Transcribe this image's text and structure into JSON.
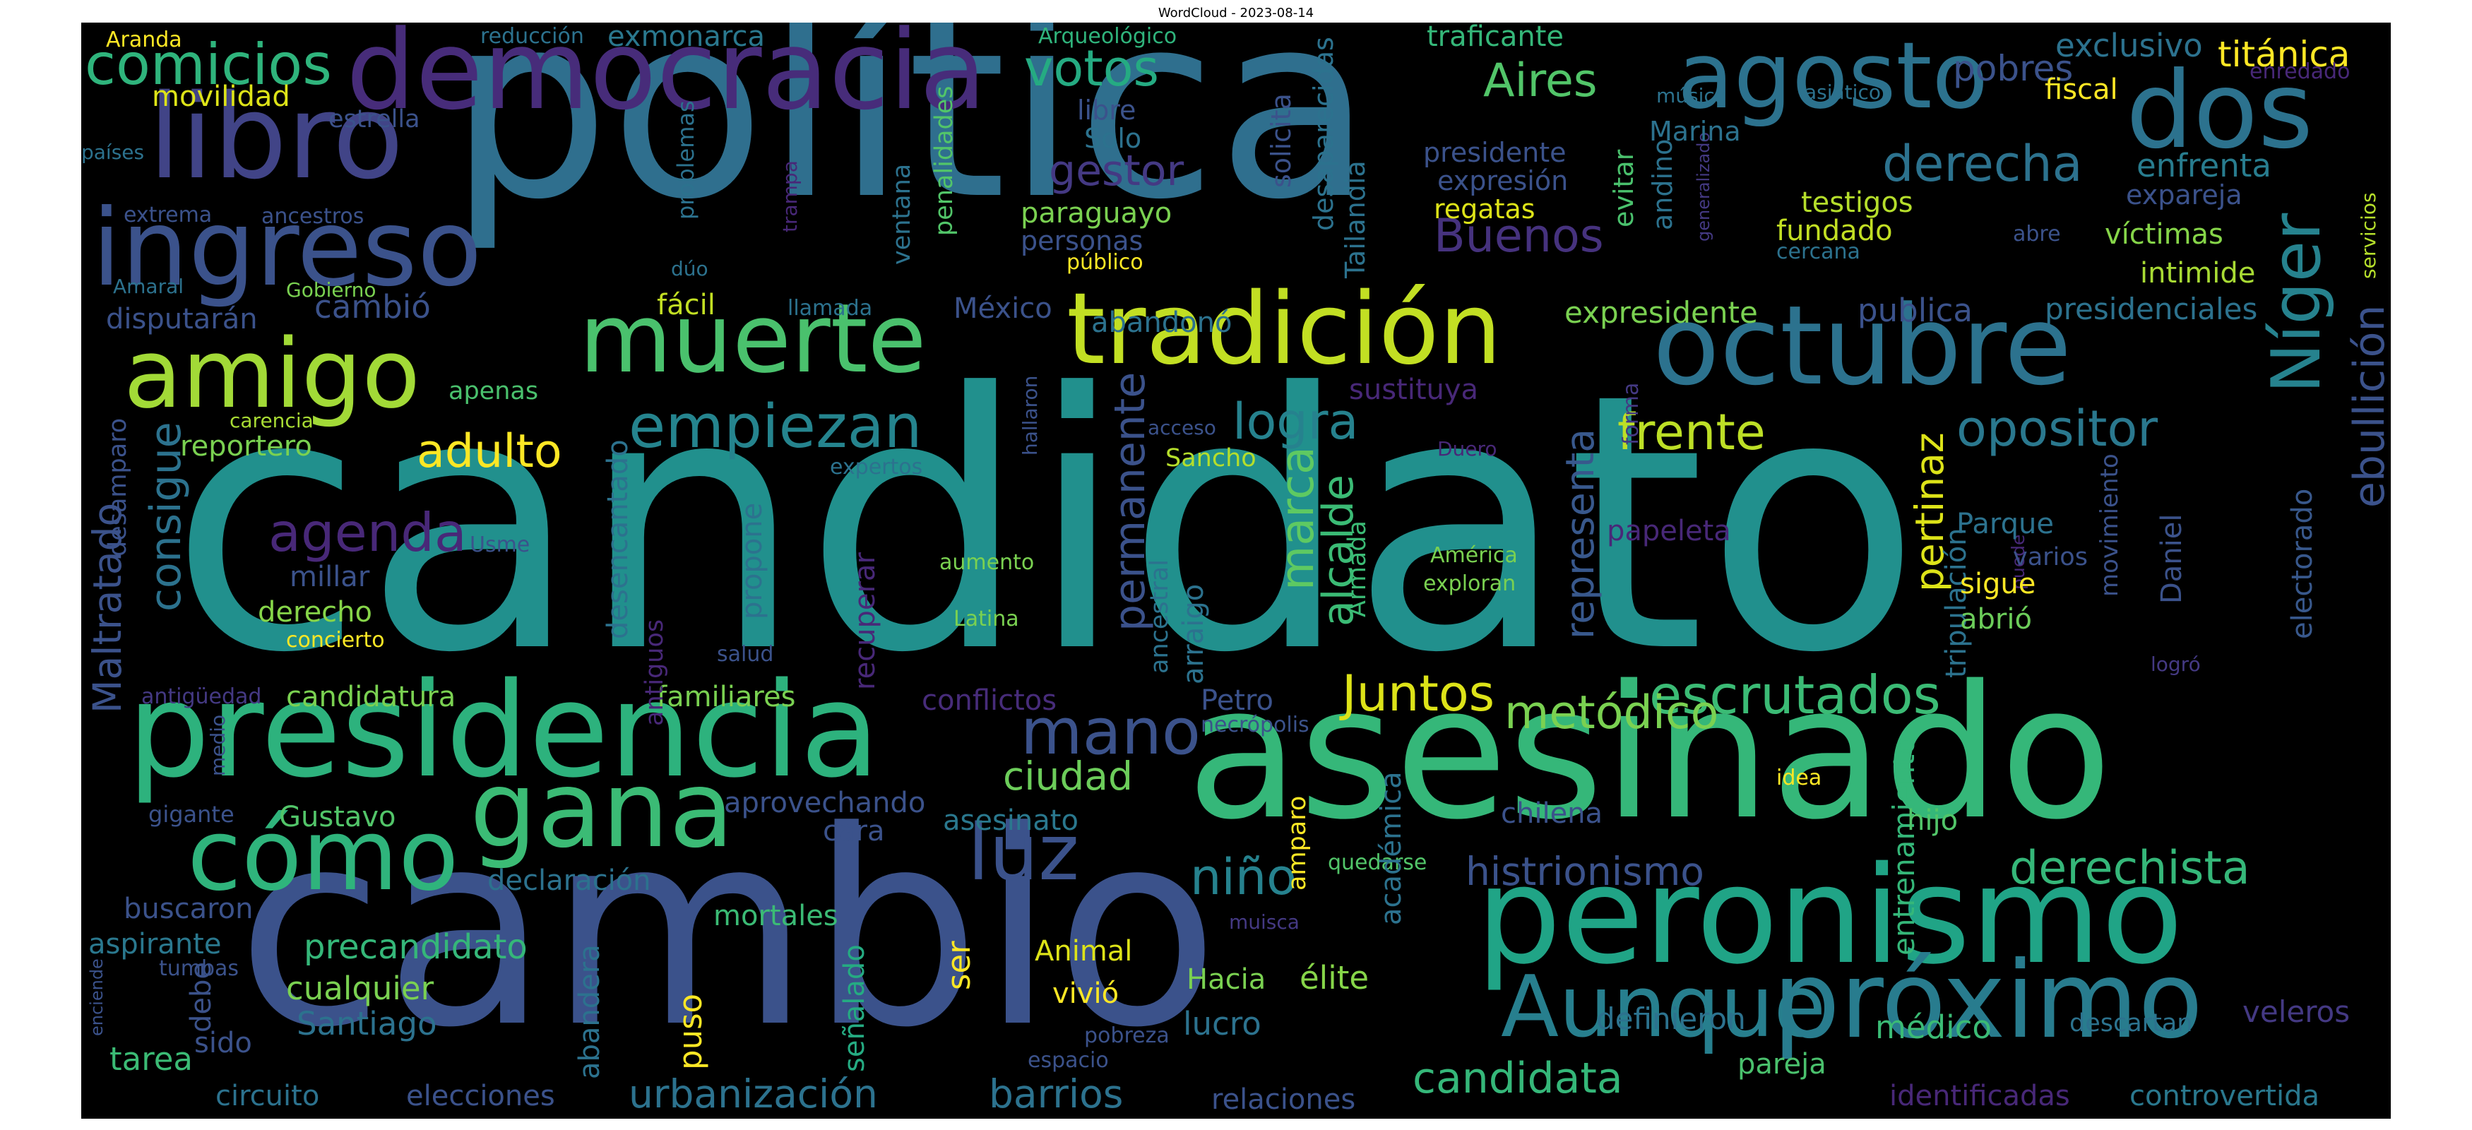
{
  "title": "WordCloud - 2023-08-14",
  "words": [
    {
      "text": "política",
      "color": "#2f6f8e"
    },
    {
      "text": "candidato",
      "color": "#21908d"
    },
    {
      "text": "cambio",
      "color": "#3b528b"
    },
    {
      "text": "asesinado",
      "color": "#35b779"
    },
    {
      "text": "peronismo",
      "color": "#20a486"
    },
    {
      "text": "presidencia",
      "color": "#2db27d"
    },
    {
      "text": "democracia",
      "color": "#472c7a"
    },
    {
      "text": "ingreso",
      "color": "#3b528b"
    },
    {
      "text": "libro",
      "color": "#414487"
    },
    {
      "text": "agosto",
      "color": "#2c728e"
    },
    {
      "text": "dos",
      "color": "#2c728e"
    },
    {
      "text": "octubre",
      "color": "#2c728e"
    },
    {
      "text": "muerte",
      "color": "#4ac16d"
    },
    {
      "text": "tradición",
      "color": "#c2df23"
    },
    {
      "text": "amigo",
      "color": "#a2da37"
    },
    {
      "text": "gana",
      "color": "#3bbb75"
    },
    {
      "text": "cómo",
      "color": "#2fb47c"
    },
    {
      "text": "Aunque",
      "color": "#277f8e"
    },
    {
      "text": "próximo",
      "color": "#287c8e"
    },
    {
      "text": "Níger",
      "color": "#26828e"
    },
    {
      "text": "comicios",
      "color": "#2fb47c"
    },
    {
      "text": "empiezan",
      "color": "#25848e"
    },
    {
      "text": "luz",
      "color": "#3b528b"
    },
    {
      "text": "mano",
      "color": "#3b528b"
    },
    {
      "text": "Juntos",
      "color": "#dde318"
    },
    {
      "text": "escrutados",
      "color": "#3bbb75"
    },
    {
      "text": "metódico",
      "color": "#7ad151"
    },
    {
      "text": "derechista",
      "color": "#35b779"
    },
    {
      "text": "histrionismo",
      "color": "#3b528b"
    },
    {
      "text": "candidata",
      "color": "#35b779"
    },
    {
      "text": "urbanización",
      "color": "#2c728e"
    },
    {
      "text": "barrios",
      "color": "#2c728e"
    },
    {
      "text": "agenda",
      "color": "#482878"
    },
    {
      "text": "adulto",
      "color": "#fde725"
    },
    {
      "text": "logra",
      "color": "#26828e"
    },
    {
      "text": "frente",
      "color": "#bddf26"
    },
    {
      "text": "opositor",
      "color": "#2a788e"
    },
    {
      "text": "derecha",
      "color": "#2c728e"
    },
    {
      "text": "votos",
      "color": "#25ab82"
    },
    {
      "text": "gestor",
      "color": "#443983"
    },
    {
      "text": "Aires",
      "color": "#52c569"
    },
    {
      "text": "Buenos",
      "color": "#46327e"
    },
    {
      "text": "pobres",
      "color": "#3b528b"
    },
    {
      "text": "titánica",
      "color": "#fde725"
    },
    {
      "text": "exclusivo",
      "color": "#2c728e"
    },
    {
      "text": "enfrenta",
      "color": "#287c8e"
    },
    {
      "text": "expareja",
      "color": "#3b528b"
    },
    {
      "text": "víctimas",
      "color": "#86d549"
    },
    {
      "text": "intimide",
      "color": "#a8db34"
    },
    {
      "text": "presidenciales",
      "color": "#2c728e"
    },
    {
      "text": "expresidente",
      "color": "#7ad151"
    },
    {
      "text": "publica",
      "color": "#3b528b"
    },
    {
      "text": "ebullición",
      "color": "#3b528b"
    },
    {
      "text": "electorado",
      "color": "#38588c"
    },
    {
      "text": "movimiento",
      "color": "#3b528b"
    },
    {
      "text": "Daniel",
      "color": "#3b528b"
    },
    {
      "text": "consigue",
      "color": "#2c728e"
    },
    {
      "text": "Maltratado",
      "color": "#3b528b"
    },
    {
      "text": "niño",
      "color": "#26828e"
    },
    {
      "text": "ciudad",
      "color": "#6ccd5a"
    },
    {
      "text": "marca",
      "color": "#5ec962"
    },
    {
      "text": "alcalde",
      "color": "#3bbb75"
    },
    {
      "text": "permanente",
      "color": "#3b528b"
    },
    {
      "text": "representa",
      "color": "#38588c"
    },
    {
      "text": "pertinaz",
      "color": "#dde318"
    },
    {
      "text": "entrenamiento",
      "color": "#35b779"
    },
    {
      "text": "precandidato",
      "color": "#35b779"
    },
    {
      "text": "cualquier",
      "color": "#7ad151"
    },
    {
      "text": "Santiago",
      "color": "#2c728e"
    },
    {
      "text": "tarea",
      "color": "#3bbb75"
    },
    {
      "text": "circuito",
      "color": "#2c728e"
    },
    {
      "text": "elecciones",
      "color": "#3b528b"
    },
    {
      "text": "relaciones",
      "color": "#3b528b"
    },
    {
      "text": "pareja",
      "color": "#4ac16d"
    },
    {
      "text": "identificadas",
      "color": "#482878"
    },
    {
      "text": "controvertida",
      "color": "#2a788e"
    },
    {
      "text": "definieron",
      "color": "#2c728e"
    },
    {
      "text": "médico",
      "color": "#3bbb75"
    },
    {
      "text": "descartan",
      "color": "#2c728e"
    },
    {
      "text": "veleros",
      "color": "#443983"
    },
    {
      "text": "lucro",
      "color": "#2c728e"
    },
    {
      "text": "élite",
      "color": "#86d549"
    },
    {
      "text": "Hacia",
      "color": "#7ad151"
    },
    {
      "text": "Animal",
      "color": "#dde318"
    },
    {
      "text": "vivió",
      "color": "#fde725"
    },
    {
      "text": "puso",
      "color": "#fde725"
    },
    {
      "text": "ser",
      "color": "#fde725"
    },
    {
      "text": "señalado",
      "color": "#25ab82"
    },
    {
      "text": "abandera",
      "color": "#2c728e"
    },
    {
      "text": "declaración",
      "color": "#2c728e"
    },
    {
      "text": "mortales",
      "color": "#3bbb75"
    },
    {
      "text": "aprovechando",
      "color": "#3b528b"
    },
    {
      "text": "asesinato",
      "color": "#2a788e"
    },
    {
      "text": "cara",
      "color": "#3b528b"
    },
    {
      "text": "Gustavo",
      "color": "#52c569"
    },
    {
      "text": "gigante",
      "color": "#3b528b"
    },
    {
      "text": "buscaron",
      "color": "#3b528b"
    },
    {
      "text": "aspirante",
      "color": "#2a788e"
    },
    {
      "text": "tumbas",
      "color": "#3b528b"
    },
    {
      "text": "debe",
      "color": "#3b528b"
    },
    {
      "text": "sido",
      "color": "#3b528b"
    },
    {
      "text": "enciende",
      "color": "#3b528b"
    },
    {
      "text": "candidatura",
      "color": "#7ad151"
    },
    {
      "text": "familiares",
      "color": "#7ad151"
    },
    {
      "text": "conflictos",
      "color": "#472c7a"
    },
    {
      "text": "Petro",
      "color": "#3b528b"
    },
    {
      "text": "necrópolis",
      "color": "#3b528b"
    },
    {
      "text": "chilena",
      "color": "#3b528b"
    },
    {
      "text": "hijo",
      "color": "#52c569"
    },
    {
      "text": "quedarse",
      "color": "#52c569"
    },
    {
      "text": "académica",
      "color": "#2c728e"
    },
    {
      "text": "amparo",
      "color": "#fde725"
    },
    {
      "text": "idea",
      "color": "#fde725"
    },
    {
      "text": "muisca",
      "color": "#443983"
    },
    {
      "text": "pobreza",
      "color": "#3b528b"
    },
    {
      "text": "espacio",
      "color": "#3b528b"
    },
    {
      "text": "medio",
      "color": "#3b528b"
    },
    {
      "text": "antigüedad",
      "color": "#443983"
    },
    {
      "text": "derecho",
      "color": "#86d549"
    },
    {
      "text": "concierto",
      "color": "#fde725"
    },
    {
      "text": "millar",
      "color": "#3b528b"
    },
    {
      "text": "desencantado",
      "color": "#2c728e"
    },
    {
      "text": "antiguos",
      "color": "#482878"
    },
    {
      "text": "propone",
      "color": "#2c728e"
    },
    {
      "text": "salud",
      "color": "#3b528b"
    },
    {
      "text": "recuperar",
      "color": "#482878"
    },
    {
      "text": "ancestral",
      "color": "#2c728e"
    },
    {
      "text": "arraigo",
      "color": "#2c728e"
    },
    {
      "text": "Armada",
      "color": "#3bbb75"
    },
    {
      "text": "aumento",
      "color": "#7ad151"
    },
    {
      "text": "Latina",
      "color": "#7ad151"
    },
    {
      "text": "América",
      "color": "#7ad151"
    },
    {
      "text": "exploran",
      "color": "#7ad151"
    },
    {
      "text": "Sancho",
      "color": "#b5de2b"
    },
    {
      "text": "acceso",
      "color": "#3b528b"
    },
    {
      "text": "Duero",
      "color": "#482878"
    },
    {
      "text": "hallaron",
      "color": "#3b528b"
    },
    {
      "text": "expertos",
      "color": "#2c728e"
    },
    {
      "text": "apenas",
      "color": "#4ac16d"
    },
    {
      "text": "reportero",
      "color": "#7ad151"
    },
    {
      "text": "carencia",
      "color": "#a8db34"
    },
    {
      "text": "desamparo",
      "color": "#3b528b"
    },
    {
      "text": "Usme",
      "color": "#3b528b"
    },
    {
      "text": "papeleta",
      "color": "#482878"
    },
    {
      "text": "forma",
      "color": "#443983"
    },
    {
      "text": "tripulación",
      "color": "#2c728e"
    },
    {
      "text": "puede",
      "color": "#482878"
    },
    {
      "text": "Parque",
      "color": "#2c728e"
    },
    {
      "text": "varios",
      "color": "#3b528b"
    },
    {
      "text": "sigue",
      "color": "#fde725"
    },
    {
      "text": "abrió",
      "color": "#6ccd5a"
    },
    {
      "text": "logró",
      "color": "#443983"
    },
    {
      "text": "sustituya",
      "color": "#482878"
    },
    {
      "text": "México",
      "color": "#3b528b"
    },
    {
      "text": "abandonó",
      "color": "#2c728e"
    },
    {
      "text": "llamada",
      "color": "#2c728e"
    },
    {
      "text": "fácil",
      "color": "#c2df23"
    },
    {
      "text": "cambió",
      "color": "#3b528b"
    },
    {
      "text": "disputarán",
      "color": "#3b528b"
    },
    {
      "text": "Gobierno",
      "color": "#7ad151"
    },
    {
      "text": "Amaral",
      "color": "#2c728e"
    },
    {
      "text": "extrema",
      "color": "#3b528b"
    },
    {
      "text": "ancestros",
      "color": "#3b528b"
    },
    {
      "text": "países",
      "color": "#2c728e"
    },
    {
      "text": "estrella",
      "color": "#3b528b"
    },
    {
      "text": "movilidad",
      "color": "#dde318"
    },
    {
      "text": "Aranda",
      "color": "#fde725"
    },
    {
      "text": "reducción",
      "color": "#2c728e"
    },
    {
      "text": "exmonarca",
      "color": "#2a788e"
    },
    {
      "text": "Arqueológico",
      "color": "#2fb47c"
    },
    {
      "text": "problemas",
      "color": "#2c728e"
    },
    {
      "text": "dúo",
      "color": "#2c728e"
    },
    {
      "text": "trampa",
      "color": "#482878"
    },
    {
      "text": "ventana",
      "color": "#2c728e"
    },
    {
      "text": "penalidades",
      "color": "#52c569"
    },
    {
      "text": "libre",
      "color": "#3b528b"
    },
    {
      "text": "Solo",
      "color": "#2c728e"
    },
    {
      "text": "paraguayo",
      "color": "#7ad151"
    },
    {
      "text": "personas",
      "color": "#3b528b"
    },
    {
      "text": "público",
      "color": "#fde725"
    },
    {
      "text": "solicita",
      "color": "#3b528b"
    },
    {
      "text": "desaparecidas",
      "color": "#2c728e"
    },
    {
      "text": "Tailandia",
      "color": "#2c728e"
    },
    {
      "text": "traficante",
      "color": "#35b779"
    },
    {
      "text": "presidente",
      "color": "#3b528b"
    },
    {
      "text": "expresión",
      "color": "#3b528b"
    },
    {
      "text": "regatas",
      "color": "#dde318"
    },
    {
      "text": "evitar",
      "color": "#4ac16d"
    },
    {
      "text": "andino",
      "color": "#2c728e"
    },
    {
      "text": "generalizado",
      "color": "#443983"
    },
    {
      "text": "Marina",
      "color": "#2c728e"
    },
    {
      "text": "testigos",
      "color": "#b5de2b"
    },
    {
      "text": "fundado",
      "color": "#c2df23"
    },
    {
      "text": "cercana",
      "color": "#2c728e"
    },
    {
      "text": "música",
      "color": "#2c728e"
    },
    {
      "text": "asiático",
      "color": "#2c728e"
    },
    {
      "text": "fiscal",
      "color": "#fde725"
    },
    {
      "text": "abre",
      "color": "#3b528b"
    },
    {
      "text": "enredado",
      "color": "#482878"
    },
    {
      "text": "servicios",
      "color": "#b5de2b"
    }
  ]
}
